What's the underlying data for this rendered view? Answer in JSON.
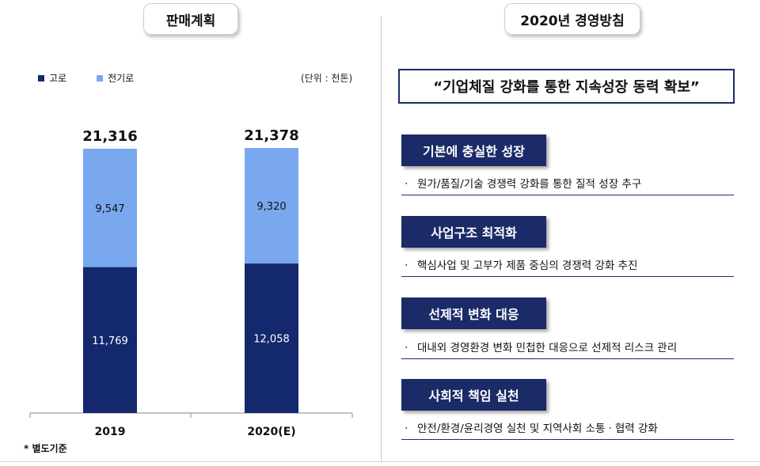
{
  "left_title": "판매계획",
  "right_title": "2020년 경영방침",
  "unit_label": "(단위 : 천톤)",
  "footnote": "* 별도기준",
  "colors": {
    "blast_furnace": "#14286e",
    "eaf": "#79a8ef",
    "navy": "#1b2b67"
  },
  "chart_data": {
    "type": "bar",
    "stacked": true,
    "categories": [
      "2019",
      "2020(E)"
    ],
    "series": [
      {
        "name": "고로",
        "values": [
          11769,
          12058
        ]
      },
      {
        "name": "전기로",
        "values": [
          9547,
          9320
        ]
      }
    ],
    "value_labels": {
      "고로": [
        "11,769",
        "12,058"
      ],
      "전기로": [
        "9,547",
        "9,320"
      ]
    },
    "totals": [
      21316,
      21378
    ],
    "total_labels": [
      "21,316",
      "21,378"
    ],
    "ylim": [
      0,
      21378
    ],
    "legend_position": "top-left",
    "grid": false
  },
  "slogan": "“기업체질 강화를 통한 지속성장 동력 확보”",
  "strategies": [
    {
      "title": "기본에 충실한 성장",
      "desc": "원가/품질/기술 경쟁력 강화를 통한 질적 성장 추구"
    },
    {
      "title": "사업구조 최적화",
      "desc": "핵심사업 및 고부가 제품 중심의 경쟁력 강화 추진"
    },
    {
      "title": "선제적 변화 대응",
      "desc": "대내외 경영환경 변화 민첩한 대응으로 선제적 리스크 관리"
    },
    {
      "title": "사회적 책임 실천",
      "desc": "안전/환경/윤리경영 실천 및 지역사회 소통ㆍ협력 강화"
    }
  ],
  "bullet": "ㆍ"
}
